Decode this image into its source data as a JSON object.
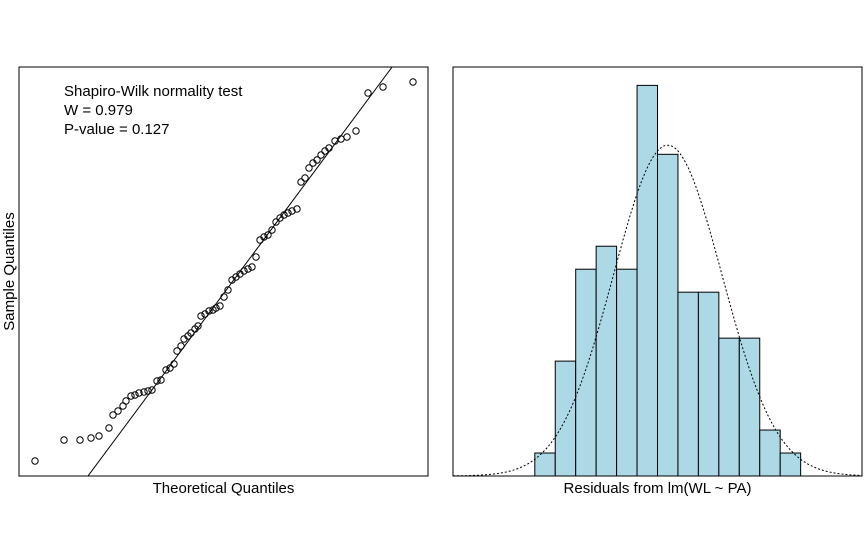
{
  "chart_data": [
    {
      "type": "qq",
      "xlabel": "Theoretical Quantiles",
      "ylabel": "Sample Quantiles",
      "annotations": [
        "Shapiro-Wilk normality test",
        "W = 0.979",
        "P-value = 0.127"
      ],
      "xlim": [
        0,
        409
      ],
      "ylim": [
        0,
        409
      ],
      "x": [
        16,
        45,
        61,
        72,
        80,
        90,
        94,
        99,
        104,
        107,
        112,
        116,
        120,
        125,
        129,
        133,
        138,
        142,
        147,
        151,
        155,
        158,
        162,
        165,
        169,
        172,
        176,
        179,
        182,
        186,
        190,
        194,
        197,
        201,
        205,
        209,
        213,
        217,
        221,
        225,
        229,
        233,
        237,
        241,
        245,
        249,
        253,
        257,
        261,
        265,
        269,
        273,
        278,
        282,
        286,
        290,
        294,
        298,
        302,
        306,
        310,
        316,
        322,
        328,
        337,
        349,
        364,
        394
      ],
      "y": [
        15,
        36,
        36,
        38,
        40,
        48,
        61,
        65,
        70,
        75,
        80,
        81,
        83,
        84,
        85,
        86,
        95,
        96,
        106,
        108,
        112,
        125,
        130,
        137,
        140,
        143,
        147,
        150,
        160,
        162,
        165,
        166,
        168,
        170,
        179,
        186,
        196,
        199,
        202,
        205,
        207,
        209,
        219,
        236,
        239,
        241,
        246,
        254,
        258,
        261,
        263,
        265,
        267,
        294,
        298,
        308,
        313,
        316,
        321,
        325,
        328,
        335,
        337,
        339,
        345,
        383,
        389,
        394
      ],
      "color": "#000000",
      "qq_line": {
        "intercept": -92.8,
        "slope": 1.345
      }
    },
    {
      "type": "histogram",
      "xlabel": "Residuals from lm(WL ~ PA)",
      "bins": [
        -6,
        -5,
        -4,
        -3,
        -2,
        -1,
        0,
        1,
        2,
        3,
        4,
        5,
        6,
        7
      ],
      "counts": [
        1,
        5,
        9,
        10,
        9,
        17,
        14,
        8,
        8,
        6,
        6,
        2,
        1
      ],
      "color": "#add8e6",
      "xlim": [
        -10,
        10
      ],
      "ylim": [
        0,
        17.8
      ],
      "density_curve": {
        "mean": 0.5,
        "sd": 2.66,
        "n": 96
      }
    }
  ]
}
